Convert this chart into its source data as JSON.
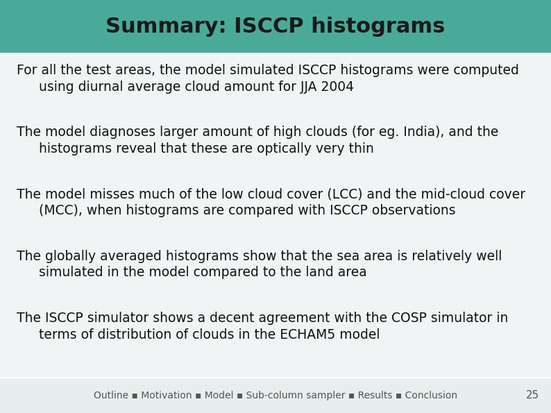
{
  "title": "Summary: ISCCP histograms",
  "title_bg_color": "#4aaa99",
  "title_text_color": "#1a1a1a",
  "title_fontsize": 22,
  "body_bg_color": "#f0f4f4",
  "bullet_points": [
    {
      "main": "For all the test areas, the model simulated ISCCP histograms were computed",
      "sub": "using diurnal average cloud amount for JJA 2004"
    },
    {
      "main": "The model diagnoses larger amount of high clouds (for eg. India), and the",
      "sub": "histograms reveal that these are optically very thin"
    },
    {
      "main": "The model misses much of the low cloud cover (LCC) and the mid-cloud cover",
      "sub": "(MCC), when histograms are compared with ISCCP observations"
    },
    {
      "main": "The globally averaged histograms show that the sea area is relatively well",
      "sub": "simulated in the model compared to the land area"
    },
    {
      "main": "The ISCCP simulator shows a decent agreement with the COSP simulator in",
      "sub": "terms of distribution of clouds in the ECHAM5 model"
    }
  ],
  "footer_text": "Outline ▪ Motivation ▪ Model ▪ Sub-column sampler ▪ Results ▪ Conclusion",
  "footer_page": "25",
  "text_fontsize": 13.5,
  "footer_fontsize": 10,
  "footer_bg_color": "#e8eeee",
  "text_color": "#111111"
}
